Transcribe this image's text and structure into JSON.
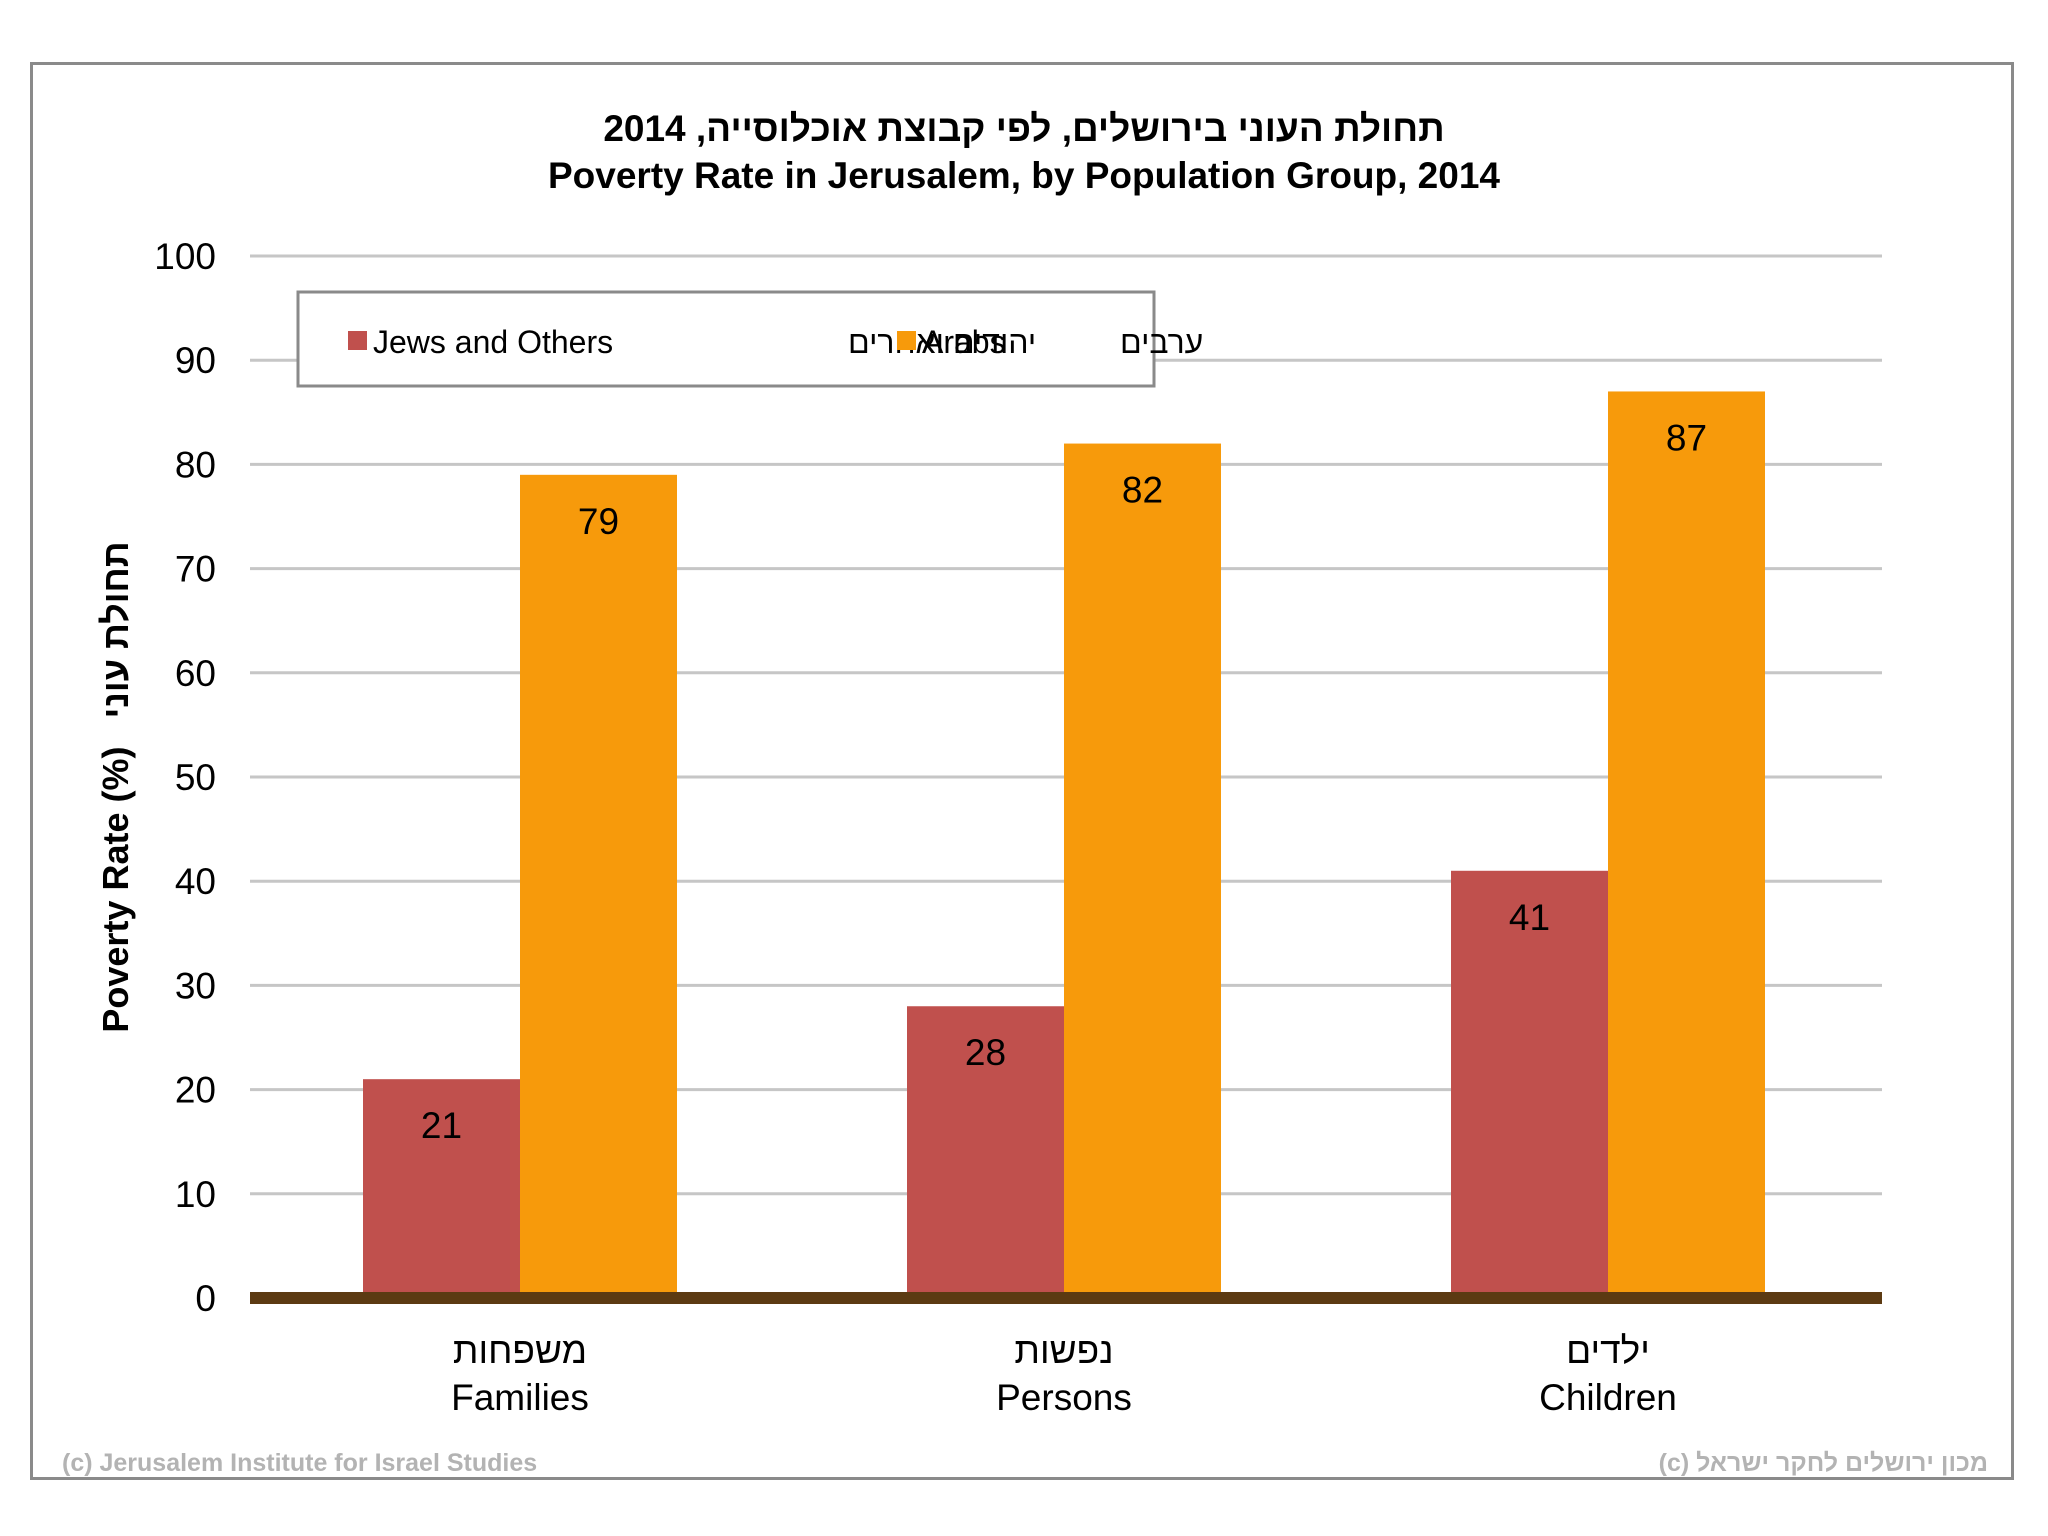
{
  "chart_data": {
    "type": "bar",
    "title_he": "תחולת העוני בירושלים, לפי קבוצת אוכלוסייה, 2014",
    "title": "Poverty Rate in Jerusalem, by Population Group, 2014",
    "ylabel_en": "Poverty Rate  (%)",
    "ylabel_he": "תחולת עוני",
    "ylim": [
      0,
      100
    ],
    "yticks": [
      0,
      10,
      20,
      30,
      40,
      50,
      60,
      70,
      80,
      90,
      100
    ],
    "categories": [
      {
        "he": "משפחות",
        "en": "Families"
      },
      {
        "he": "נפשות",
        "en": "Persons"
      },
      {
        "he": "ילדים",
        "en": "Children"
      }
    ],
    "series": [
      {
        "name": "Jews and Others",
        "name_he": "יהודים ואחרים",
        "color": "#c0504d",
        "values": [
          21,
          28,
          41
        ]
      },
      {
        "name": "Arabs",
        "name_he": "ערבים",
        "color": "#f79a0b",
        "values": [
          79,
          82,
          87
        ]
      }
    ],
    "legend_position": "top-left",
    "grid": true
  },
  "credits": {
    "en": "(c) Jerusalem Institute for Israel Studies",
    "he": "(c) מכון ירושלים לחקר ישראל"
  }
}
